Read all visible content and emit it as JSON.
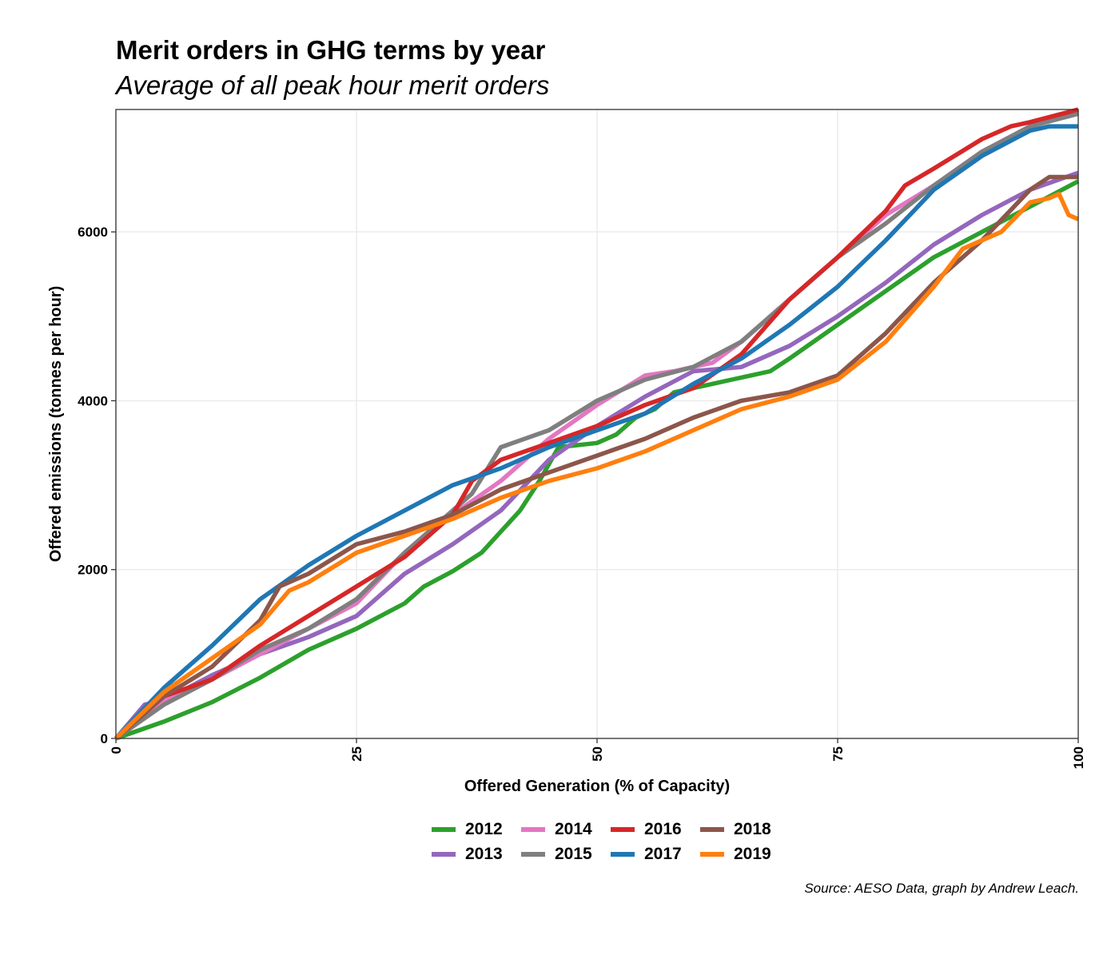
{
  "title": "Merit orders in GHG terms by year",
  "subtitle": "Average of all peak hour merit orders",
  "caption": "Source: AESO Data, graph by Andrew Leach.",
  "chart_data": {
    "type": "line",
    "xlabel": "Offered Generation (% of Capacity)",
    "ylabel": "Offered emissions (tonnes per hour)",
    "xlim": [
      0,
      100
    ],
    "ylim": [
      0,
      7450
    ],
    "xticks": [
      "0",
      "25",
      "50",
      "75",
      "100"
    ],
    "yticks": [
      "0",
      "2000",
      "4000",
      "6000"
    ],
    "grid": true,
    "legend_position": "bottom",
    "series": [
      {
        "name": "2012",
        "color": "#2ca02c",
        "x": [
          0,
          5,
          10,
          15,
          20,
          25,
          30,
          32,
          35,
          38,
          40,
          42,
          44,
          46,
          50,
          52,
          54,
          56,
          58,
          60,
          62,
          64,
          66,
          68,
          70,
          75,
          80,
          85,
          90,
          95,
          100
        ],
        "y": [
          0,
          200,
          430,
          720,
          1050,
          1300,
          1600,
          1800,
          1980,
          2200,
          2450,
          2700,
          3050,
          3450,
          3500,
          3600,
          3800,
          3900,
          4100,
          4150,
          4200,
          4250,
          4300,
          4350,
          4500,
          4900,
          5300,
          5700,
          6000,
          6300,
          6600
        ]
      },
      {
        "name": "2013",
        "color": "#9467bd",
        "x": [
          0,
          3,
          5,
          10,
          15,
          20,
          25,
          30,
          35,
          40,
          45,
          50,
          55,
          60,
          65,
          70,
          75,
          80,
          85,
          90,
          95,
          100
        ],
        "y": [
          0,
          400,
          450,
          750,
          1000,
          1200,
          1450,
          1950,
          2300,
          2700,
          3300,
          3700,
          4050,
          4350,
          4400,
          4650,
          5000,
          5400,
          5850,
          6200,
          6500,
          6700
        ]
      },
      {
        "name": "2014",
        "color": "#e377c2",
        "x": [
          0,
          5,
          10,
          15,
          20,
          25,
          30,
          35,
          40,
          45,
          50,
          55,
          58,
          60,
          62,
          65,
          70,
          75,
          80,
          85,
          90,
          95,
          100
        ],
        "y": [
          0,
          450,
          700,
          1000,
          1300,
          1600,
          2200,
          2650,
          3050,
          3550,
          3950,
          4300,
          4350,
          4400,
          4450,
          4700,
          5200,
          5700,
          6200,
          6550,
          6950,
          7250,
          7450
        ]
      },
      {
        "name": "2015",
        "color": "#7f7f7f",
        "x": [
          0,
          5,
          10,
          15,
          20,
          25,
          30,
          35,
          37,
          40,
          45,
          50,
          55,
          60,
          65,
          70,
          75,
          80,
          85,
          90,
          95,
          100
        ],
        "y": [
          0,
          400,
          700,
          1050,
          1300,
          1650,
          2200,
          2700,
          2900,
          3450,
          3650,
          4000,
          4250,
          4400,
          4700,
          5200,
          5700,
          6100,
          6550,
          6950,
          7250,
          7400
        ]
      },
      {
        "name": "2016",
        "color": "#d62728",
        "x": [
          0,
          5,
          10,
          15,
          20,
          25,
          30,
          35,
          37,
          40,
          45,
          50,
          55,
          60,
          65,
          70,
          75,
          80,
          82,
          85,
          90,
          93,
          95,
          100
        ],
        "y": [
          0,
          500,
          700,
          1100,
          1450,
          1800,
          2150,
          2650,
          3050,
          3300,
          3500,
          3700,
          3950,
          4150,
          4550,
          5200,
          5700,
          6250,
          6550,
          6750,
          7100,
          7250,
          7300,
          7450
        ]
      },
      {
        "name": "2017",
        "color": "#1f77b4",
        "x": [
          0,
          5,
          10,
          15,
          20,
          25,
          30,
          35,
          40,
          45,
          50,
          55,
          60,
          65,
          70,
          75,
          80,
          85,
          90,
          95,
          97,
          100
        ],
        "y": [
          0,
          600,
          1100,
          1650,
          2050,
          2400,
          2700,
          3000,
          3200,
          3450,
          3650,
          3850,
          4200,
          4500,
          4900,
          5350,
          5900,
          6500,
          6900,
          7200,
          7250,
          7250
        ]
      },
      {
        "name": "2018",
        "color": "#8c564b",
        "x": [
          0,
          5,
          10,
          15,
          17,
          20,
          25,
          30,
          35,
          40,
          45,
          50,
          55,
          60,
          65,
          70,
          75,
          80,
          85,
          90,
          95,
          97,
          100
        ],
        "y": [
          0,
          500,
          850,
          1400,
          1800,
          1950,
          2300,
          2450,
          2650,
          2950,
          3150,
          3350,
          3550,
          3800,
          4000,
          4100,
          4300,
          4800,
          5400,
          5900,
          6500,
          6650,
          6650
        ]
      },
      {
        "name": "2019",
        "color": "#ff7f0e",
        "x": [
          0,
          5,
          10,
          15,
          18,
          20,
          25,
          30,
          35,
          40,
          45,
          50,
          55,
          60,
          65,
          70,
          75,
          80,
          85,
          88,
          90,
          92,
          95,
          97,
          98,
          99,
          100
        ],
        "y": [
          0,
          550,
          950,
          1350,
          1750,
          1850,
          2200,
          2400,
          2600,
          2850,
          3050,
          3200,
          3400,
          3650,
          3900,
          4050,
          4250,
          4700,
          5350,
          5800,
          5900,
          6000,
          6350,
          6400,
          6450,
          6200,
          6150
        ]
      }
    ]
  }
}
